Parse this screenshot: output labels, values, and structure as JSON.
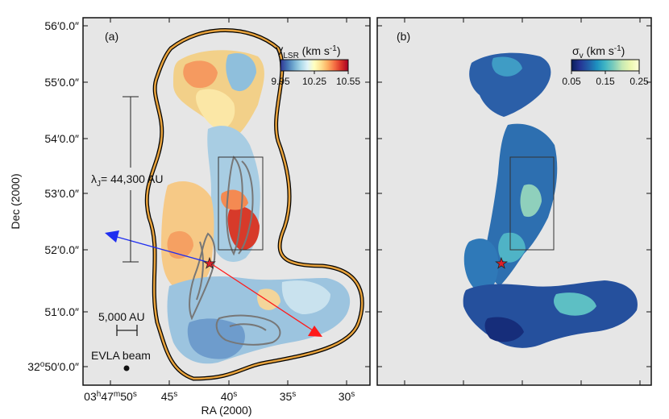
{
  "chart_data": [
    {
      "type": "heatmap",
      "panel_label": "(a)",
      "quantity": "V_LSR",
      "colorbar": {
        "title_main": "V",
        "title_sub": "LSR",
        "title_unit_pre": " (km s",
        "title_unit_exp": "-1",
        "title_unit_post": ")",
        "ticks": [
          "9.95",
          "10.25",
          "10.55"
        ],
        "range": [
          9.95,
          10.55
        ],
        "colormap": [
          "#313695",
          "#4575b4",
          "#74add1",
          "#abd9e9",
          "#e0f3f8",
          "#ffffbf",
          "#fee090",
          "#fdae61",
          "#f46d43",
          "#d73027",
          "#a50026"
        ]
      },
      "xlabel": "RA (2000)",
      "ylabel": "Dec (2000)",
      "xticks": [
        {
          "h": "03",
          "m": "47",
          "s": "50"
        },
        {
          "s": "45"
        },
        {
          "s": "40"
        },
        {
          "s": "35"
        },
        {
          "s": "30"
        }
      ],
      "yticks": [
        {
          "deg": "32",
          "min": "50",
          "sec": "0"
        },
        {
          "min": "51",
          "sec": "0"
        },
        {
          "min": "52",
          "sec": "0"
        },
        {
          "min": "53",
          "sec": "0"
        },
        {
          "min": "54",
          "sec": "0"
        },
        {
          "min": "55",
          "sec": "0"
        },
        {
          "min": "56",
          "sec": "0"
        }
      ],
      "annotations": {
        "jeans_length_symbol": "λ",
        "jeans_length_sub": "J",
        "jeans_length_text": "= 44,300 AU",
        "scale_bar_label": "5,000 AU",
        "beam_label": "EVLA beam"
      }
    },
    {
      "type": "heatmap",
      "panel_label": "(b)",
      "quantity": "sigma_v",
      "colorbar": {
        "title_main": "σ",
        "title_sub": "v",
        "title_unit_pre": " (km s",
        "title_unit_exp": "-1",
        "title_unit_post": ")",
        "ticks": [
          "0.05",
          "0.15",
          "0.25"
        ],
        "range": [
          0.05,
          0.25
        ],
        "colormap": [
          "#081d58",
          "#253494",
          "#225ea8",
          "#1d91c0",
          "#41b6c4",
          "#7fcdbb",
          "#c7e9b4",
          "#edf8b1",
          "#ffffd9"
        ]
      }
    }
  ],
  "colors": {
    "background": "#e6e6e6",
    "envelope_outer": "#000000",
    "envelope_inner": "#e8a33d",
    "contour": "#777777",
    "outflow_blue": "#1f2ef0",
    "outflow_red": "#ff1a1a",
    "star_fill": "#e0202a"
  }
}
